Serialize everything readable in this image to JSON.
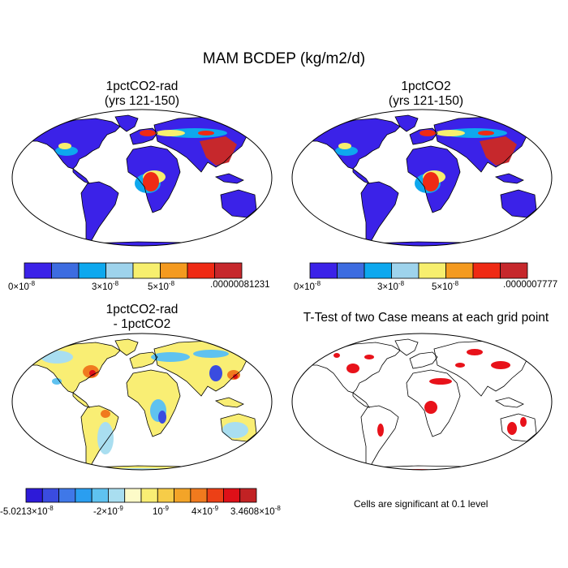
{
  "main_title": "MAM BCDEP (kg/m2/d)",
  "panels": [
    {
      "title_line1": "1pctCO2-rad",
      "title_line2": "(yrs 121-150)",
      "colorbar": {
        "colors": [
          "#3b22e8",
          "#3d6ce0",
          "#0ea8ee",
          "#9ed3ec",
          "#f7ef6e",
          "#f49a1f",
          "#ef2a14",
          "#c6282c"
        ],
        "labels": {
          "min": {
            "mant": "0",
            "exp": "-8"
          },
          "a": {
            "mant": "3",
            "exp": "-8"
          },
          "b": {
            "mant": "5",
            "exp": "-8"
          },
          "max": ".00000081231"
        }
      }
    },
    {
      "title_line1": "1pctCO2",
      "title_line2": "(yrs 121-150)",
      "colorbar": {
        "colors": [
          "#3b22e8",
          "#3d6ce0",
          "#0ea8ee",
          "#9ed3ec",
          "#f7ef6e",
          "#f49a1f",
          "#ef2a14",
          "#c6282c"
        ],
        "labels": {
          "min": {
            "mant": "0",
            "exp": "-8"
          },
          "a": {
            "mant": "3",
            "exp": "-8"
          },
          "b": {
            "mant": "5",
            "exp": "-8"
          },
          "max": ".0000007777"
        }
      }
    },
    {
      "title_line1": "1pctCO2-rad",
      "title_line2": "- 1pctCO2",
      "colorbar": {
        "colors": [
          "#2d1ad8",
          "#3a4ce0",
          "#3f78e8",
          "#2a9ef0",
          "#5fc2f0",
          "#a9def0",
          "#fdfbc8",
          "#f9ee74",
          "#f6cc48",
          "#f3a428",
          "#f07a1e",
          "#ec4016",
          "#de1018",
          "#c22224"
        ],
        "labels": {
          "min": {
            "mant": "-5.0213",
            "exp": "-8"
          },
          "a": {
            "mant": "-2",
            "exp": "-9"
          },
          "b_plain": "10",
          "b_exp": "-9",
          "c": {
            "mant": "4",
            "exp": "-9"
          },
          "max": {
            "mant": "3.4608",
            "exp": "-8"
          }
        }
      }
    },
    {
      "title": "T-Test of two Case means at each grid point",
      "note": "Cells are significant at 0.1 level",
      "significance_color": "#e8121a"
    }
  ],
  "colors": {
    "ocean": "#ffffff",
    "coast": "#000000",
    "frame": "#000000"
  }
}
